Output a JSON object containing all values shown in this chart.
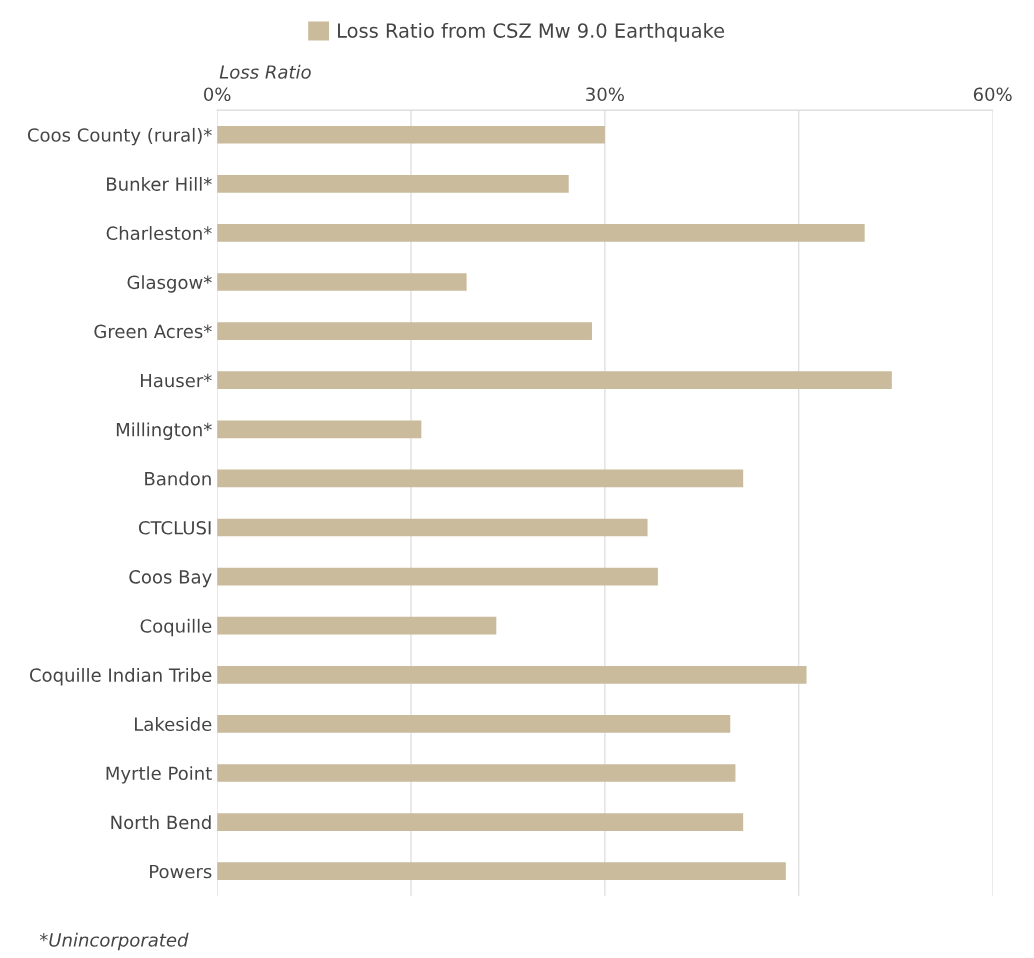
{
  "chart_data": {
    "type": "bar",
    "orientation": "horizontal",
    "xlabel": "Loss Ratio",
    "categories": [
      "Coos County (rural)*",
      "Bunker Hill*",
      "Charleston*",
      "Glasgow*",
      "Green Acres*",
      "Hauser*",
      "Millington*",
      "Bandon",
      "CTCLUSI",
      "Coos Bay",
      "Coquille",
      "Coquille Indian Tribe",
      "Lakeside",
      "Myrtle Point",
      "North Bend",
      "Powers"
    ],
    "series": [
      {
        "name": "Loss Ratio from CSZ Mw 9.0 Earthquake",
        "color": "#c9bb9b",
        "values": [
          30.0,
          27.2,
          50.1,
          19.3,
          29.0,
          52.2,
          15.8,
          40.7,
          33.3,
          34.1,
          21.6,
          45.6,
          39.7,
          40.1,
          40.7,
          44.0
        ]
      }
    ],
    "xlim": [
      0,
      60
    ],
    "xticks": [
      {
        "value": 0,
        "label": "0%"
      },
      {
        "value": 15,
        "label": null
      },
      {
        "value": 30,
        "label": "30%"
      },
      {
        "value": 45,
        "label": null
      },
      {
        "value": 60,
        "label": "60%"
      }
    ],
    "grid": "x",
    "legend": "top",
    "annotations": [
      "*Unincorporated"
    ]
  }
}
